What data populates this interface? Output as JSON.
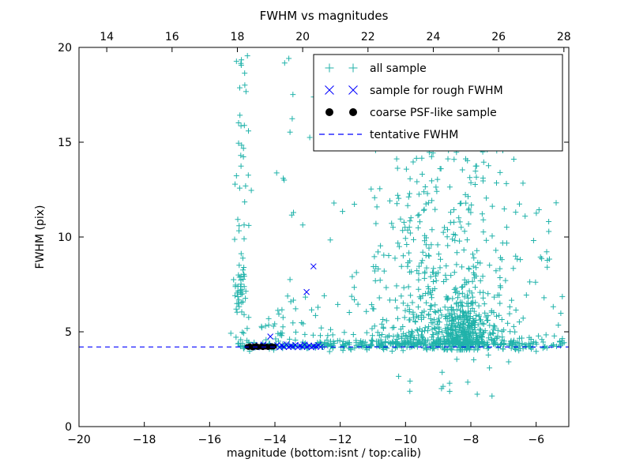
{
  "chart_data": {
    "type": "scatter",
    "title": "FWHM vs magnitudes",
    "xlabel": "magnitude (bottom:isnt / top:calib)",
    "ylabel": "FWHM (pix)",
    "xlim": [
      -20,
      -5
    ],
    "ylim": [
      0,
      20
    ],
    "x_top_lim": [
      13.15,
      28.15
    ],
    "x_ticks_bottom": [
      -20,
      -18,
      -16,
      -14,
      -12,
      -10,
      -8,
      -6
    ],
    "x_ticks_top": [
      14,
      16,
      18,
      20,
      22,
      24,
      26,
      28
    ],
    "y_ticks": [
      0,
      5,
      10,
      15,
      20
    ],
    "grid": false,
    "legend_position": "upper right",
    "tentative_fwhm": 4.2,
    "series": [
      {
        "name": "all sample",
        "marker": "plus",
        "color": "#20b2aa",
        "seed": 42,
        "clusters": [
          {
            "n": 270,
            "x": {
              "type": "uniform",
              "min": -15.15,
              "max": -5.1
            },
            "y": {
              "type": "gauss",
              "mean": 4.3,
              "sd": 0.14,
              "min": 3.95,
              "max": 4.85
            }
          },
          {
            "n": 60,
            "x": {
              "type": "uniform",
              "min": -12.8,
              "max": -9.3
            },
            "y": {
              "type": "gauss",
              "mean": 4.35,
              "sd": 0.18,
              "min": 3.95,
              "max": 5.0
            }
          },
          {
            "n": 55,
            "x": {
              "type": "gauss",
              "mean": -15.02,
              "sd": 0.13,
              "min": -15.35,
              "max": -14.6
            },
            "y": {
              "type": "pow",
              "base": 4.5,
              "range": 15.3,
              "exp": 1.35,
              "max": 19.8
            }
          },
          {
            "n": 28,
            "x": {
              "type": "gauss",
              "mean": -15.05,
              "sd": 0.1,
              "min": -15.3,
              "max": -14.75
            },
            "y": {
              "type": "gauss",
              "mean": 7.3,
              "sd": 0.55,
              "min": 6.0,
              "max": 8.6
            }
          },
          {
            "n": 12,
            "x": {
              "type": "uniform",
              "min": -14.45,
              "max": -13.55
            },
            "y": {
              "type": "uniform",
              "min": 5.2,
              "max": 6.2
            }
          },
          {
            "n": 70,
            "x": {
              "type": "uniform",
              "min": -14.05,
              "max": -10.8
            },
            "y": {
              "type": "pow",
              "base": 4.8,
              "range": 14.8,
              "exp": 2.6,
              "max": 19.6
            }
          },
          {
            "n": 520,
            "x": {
              "type": "gauss",
              "mean": -8.7,
              "sd": 1.0,
              "min": -11.2,
              "max": -5.3
            },
            "y": {
              "type": "pow",
              "base": 4.35,
              "range": 10.8,
              "exp": 2.9,
              "max": 16.0
            }
          },
          {
            "n": 230,
            "x": {
              "type": "gauss",
              "mean": -8.2,
              "sd": 0.38,
              "min": -9.3,
              "max": -7.1
            },
            "y": {
              "type": "gauss",
              "mean": 5.2,
              "sd": 0.8,
              "min": 4.05,
              "max": 7.6
            }
          },
          {
            "n": 70,
            "x": {
              "type": "uniform",
              "min": -10.9,
              "max": -8.9
            },
            "y": {
              "type": "pow",
              "base": 4.8,
              "range": 8.6,
              "exp": 2.0
            }
          },
          {
            "n": 55,
            "x": {
              "type": "uniform",
              "min": -7.3,
              "max": -5.15
            },
            "y": {
              "type": "pow",
              "base": 4.3,
              "range": 7.6,
              "exp": 2.2
            }
          },
          {
            "n": 16,
            "x": {
              "type": "uniform",
              "min": -10.6,
              "max": -6.8
            },
            "y": {
              "type": "uniform",
              "min": 1.3,
              "max": 3.85
            }
          },
          {
            "n": 8,
            "x": {
              "type": "uniform",
              "min": -8.3,
              "max": -6.4
            },
            "y": {
              "type": "uniform",
              "min": 12.0,
              "max": 15.2
            }
          }
        ]
      },
      {
        "name": "sample for rough FWHM",
        "marker": "cross",
        "color": "#0000ff",
        "points": [
          [
            -14.7,
            4.22
          ],
          [
            -14.63,
            4.3
          ],
          [
            -14.56,
            4.18
          ],
          [
            -14.49,
            4.27
          ],
          [
            -14.42,
            4.2
          ],
          [
            -14.35,
            4.33
          ],
          [
            -14.28,
            4.19
          ],
          [
            -14.21,
            4.26
          ],
          [
            -14.14,
            4.75
          ],
          [
            -14.0,
            4.22
          ],
          [
            -13.93,
            4.3
          ],
          [
            -13.86,
            4.18
          ],
          [
            -13.79,
            4.28
          ],
          [
            -13.72,
            4.21
          ],
          [
            -13.65,
            4.34
          ],
          [
            -13.58,
            4.19
          ],
          [
            -13.51,
            4.26
          ],
          [
            -13.44,
            4.22
          ],
          [
            -13.37,
            4.31
          ],
          [
            -13.3,
            4.18
          ],
          [
            -13.23,
            4.27
          ],
          [
            -13.16,
            4.21
          ],
          [
            -13.09,
            4.33
          ],
          [
            -13.02,
            4.2
          ],
          [
            -12.95,
            4.28
          ],
          [
            -12.88,
            4.18
          ],
          [
            -12.81,
            4.25
          ],
          [
            -12.74,
            4.22
          ],
          [
            -12.67,
            4.3
          ],
          [
            -12.6,
            4.2
          ],
          [
            -13.03,
            7.1
          ],
          [
            -12.82,
            8.45
          ]
        ]
      },
      {
        "name": "coarse PSF-like sample",
        "marker": "dot",
        "color": "#000000",
        "points": [
          [
            -14.85,
            4.22
          ],
          [
            -14.81,
            4.18
          ],
          [
            -14.77,
            4.26
          ],
          [
            -14.73,
            4.2
          ],
          [
            -14.69,
            4.16
          ],
          [
            -14.65,
            4.24
          ],
          [
            -14.61,
            4.2
          ],
          [
            -14.57,
            4.27
          ],
          [
            -14.53,
            4.18
          ],
          [
            -14.49,
            4.22
          ],
          [
            -14.45,
            4.2
          ],
          [
            -14.41,
            4.25
          ],
          [
            -14.37,
            4.17
          ],
          [
            -14.33,
            4.22
          ],
          [
            -14.29,
            4.2
          ],
          [
            -14.25,
            4.24
          ],
          [
            -14.21,
            4.18
          ],
          [
            -14.17,
            4.22
          ],
          [
            -14.13,
            4.2
          ],
          [
            -14.09,
            4.26
          ],
          [
            -14.05,
            4.2
          ],
          [
            -14.02,
            4.23
          ]
        ]
      },
      {
        "name": "tentative FWHM",
        "marker": "dashed",
        "color": "#0000ff",
        "hline": 4.2
      }
    ]
  },
  "colors": {
    "frame": "#000000",
    "background": "#ffffff",
    "all_sample": "#20b2aa",
    "rough_sample": "#0000ff",
    "psf_sample": "#000000",
    "tentative_line": "#0000ff"
  }
}
